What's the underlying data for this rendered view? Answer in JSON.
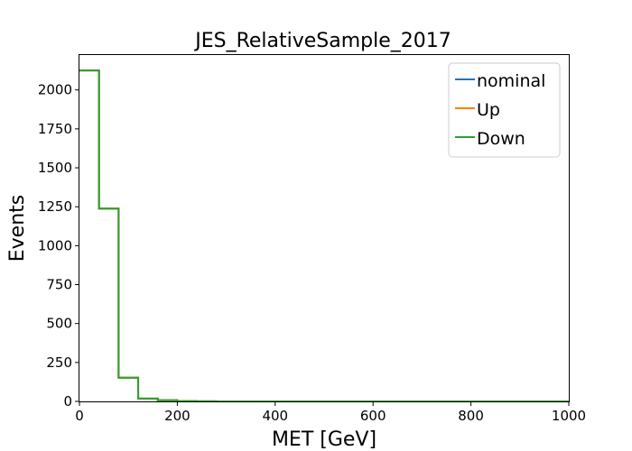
{
  "chart_data": {
    "type": "line",
    "title": "JES_RelativeSample_2017",
    "xlabel": "MET [GeV]",
    "ylabel": "Events",
    "xlim": [
      0,
      1000
    ],
    "ylim": [
      0,
      2230
    ],
    "xticks": [
      0,
      200,
      400,
      600,
      800,
      1000
    ],
    "yticks": [
      0,
      250,
      500,
      750,
      1000,
      1250,
      1500,
      1750,
      2000
    ],
    "grid": false,
    "legend_position": "top-right",
    "bin_edges": [
      0,
      40,
      80,
      120,
      160,
      200,
      240,
      280,
      320,
      360,
      400,
      440,
      480,
      520,
      560,
      600,
      640,
      680,
      720,
      760,
      800,
      840,
      880,
      920,
      960,
      1000
    ],
    "series": [
      {
        "name": "nominal",
        "color": "#1f77b4",
        "values": [
          2125,
          1238,
          152,
          18,
          7,
          2,
          1,
          0,
          0,
          0,
          0,
          0,
          0,
          0,
          0,
          0,
          0,
          0,
          0,
          0,
          0,
          0,
          0,
          0,
          0
        ]
      },
      {
        "name": "Up",
        "color": "#ff7f0e",
        "values": [
          2125,
          1238,
          152,
          18,
          7,
          2,
          1,
          0,
          0,
          0,
          0,
          0,
          0,
          0,
          0,
          0,
          0,
          0,
          0,
          0,
          0,
          0,
          0,
          0,
          0
        ]
      },
      {
        "name": "Down",
        "color": "#2ca02c",
        "values": [
          2125,
          1238,
          152,
          18,
          7,
          2,
          1,
          0,
          0,
          0,
          0,
          0,
          0,
          0,
          0,
          0,
          0,
          0,
          0,
          0,
          0,
          0,
          0,
          0,
          0
        ]
      }
    ]
  }
}
